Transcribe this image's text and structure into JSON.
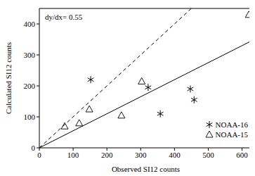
{
  "chart_data": {
    "type": "scatter",
    "x_label": "Observed SI12 counts",
    "y_label": "Calculated SI12 counts",
    "annotation": "dy/dx= 0.55",
    "xlim": [
      0,
      630
    ],
    "ylim": [
      0,
      450
    ],
    "xticks": [
      0,
      100,
      200,
      300,
      400,
      500,
      600
    ],
    "yticks": [
      0,
      100,
      200,
      300,
      400
    ],
    "legend": "lower right",
    "series": [
      {
        "name": "NOAA-16",
        "color": "#000000",
        "marker": "asterisk",
        "x": [
          152,
          322,
          358,
          447,
          458
        ],
        "values": [
          220,
          195,
          110,
          190,
          155
        ]
      },
      {
        "name": "NOAA-15",
        "color": "#000000",
        "marker": "triangle",
        "x": [
          75,
          118,
          148,
          243,
          303,
          620
        ],
        "values": [
          70,
          80,
          125,
          105,
          215,
          430
        ]
      }
    ],
    "lines": [
      {
        "slope": 1,
        "line_style": "dashed"
      },
      {
        "slope": 0.55,
        "line_style": "solid"
      }
    ]
  }
}
